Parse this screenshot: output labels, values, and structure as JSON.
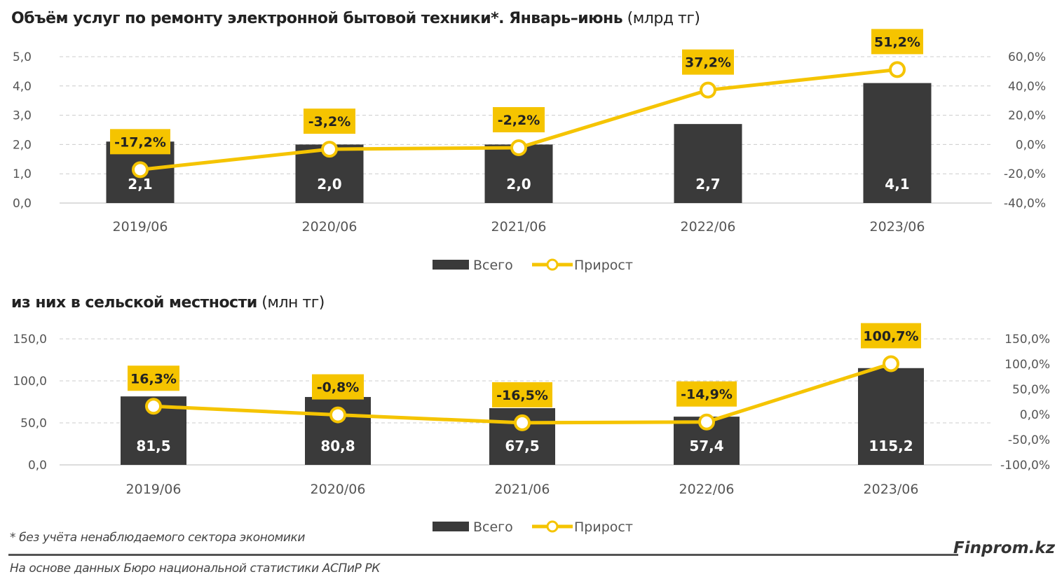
{
  "chart_data": [
    {
      "type": "bar+line",
      "title": "Объём услуг по ремонту электронной бытовой техники*. Январь–июнь",
      "title_unit": "(млрд тг)",
      "categories": [
        "2019/06",
        "2020/06",
        "2021/06",
        "2022/06",
        "2023/06"
      ],
      "series": [
        {
          "name": "Всего",
          "type": "bar",
          "axis": "left",
          "values": [
            2.1,
            2.0,
            2.0,
            2.7,
            4.1
          ],
          "color": "#3a3a3a"
        },
        {
          "name": "Прирост",
          "type": "line",
          "axis": "right",
          "values": [
            -17.2,
            -3.2,
            -2.2,
            37.2,
            51.2
          ],
          "unit": "%",
          "color": "#f5c400"
        }
      ],
      "y_left": {
        "range": [
          0,
          5
        ],
        "ticks": [
          "0,0",
          "1,0",
          "2,0",
          "3,0",
          "4,0",
          "5,0"
        ]
      },
      "y_right": {
        "range": [
          -40,
          60
        ],
        "ticks": [
          "-40,0%",
          "-20,0%",
          "0,0%",
          "20,0%",
          "40,0%",
          "60,0%"
        ]
      },
      "grid": true,
      "legend": "bottom"
    },
    {
      "type": "bar+line",
      "title": "из них в сельской местности",
      "title_unit": "(млн тг)",
      "categories": [
        "2019/06",
        "2020/06",
        "2021/06",
        "2022/06",
        "2023/06"
      ],
      "series": [
        {
          "name": "Всего",
          "type": "bar",
          "axis": "left",
          "values": [
            81.5,
            80.8,
            67.5,
            57.4,
            115.2
          ],
          "color": "#3a3a3a"
        },
        {
          "name": "Прирост",
          "type": "line",
          "axis": "right",
          "values": [
            16.3,
            -0.8,
            -16.5,
            -14.9,
            100.7
          ],
          "unit": "%",
          "color": "#f5c400"
        }
      ],
      "y_left": {
        "range": [
          0,
          150
        ],
        "ticks": [
          "0,0",
          "50,0",
          "100,0",
          "150,0"
        ]
      },
      "y_right": {
        "range": [
          -100,
          150
        ],
        "ticks": [
          "-100,0%",
          "-50,0%",
          "0,0%",
          "50,0%",
          "100,0%",
          "150,0%"
        ]
      },
      "grid": true,
      "legend": "bottom"
    }
  ],
  "footnote": "* без учёта ненаблюдаемого сектора экономики",
  "source": "На основе данных Бюро национальной статистики АСПиР РК",
  "brand": "Finprom.kz"
}
